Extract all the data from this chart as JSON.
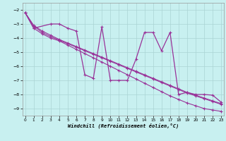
{
  "xlabel": "Windchill (Refroidissement éolien,°C)",
  "background_color": "#c8f0f0",
  "line_color": "#993399",
  "grid_color": "#aad4d4",
  "xlim": [
    -0.5,
    23.5
  ],
  "ylim": [
    -9.5,
    -1.5
  ],
  "yticks": [
    -9,
    -8,
    -7,
    -6,
    -5,
    -4,
    -3,
    -2
  ],
  "xticks": [
    0,
    1,
    2,
    3,
    4,
    5,
    6,
    7,
    8,
    9,
    10,
    11,
    12,
    13,
    14,
    15,
    16,
    17,
    18,
    19,
    20,
    21,
    22,
    23
  ],
  "straight1": {
    "x": [
      0,
      1,
      2,
      3,
      4,
      5,
      6,
      7,
      8,
      9,
      10,
      11,
      12,
      13,
      14,
      15,
      16,
      17,
      18,
      19,
      20,
      21,
      22,
      23
    ],
    "y": [
      -2.2,
      -3.3,
      -3.7,
      -4.0,
      -4.2,
      -4.5,
      -4.8,
      -5.1,
      -5.4,
      -5.7,
      -6.0,
      -6.3,
      -6.6,
      -6.9,
      -7.2,
      -7.5,
      -7.8,
      -8.1,
      -8.35,
      -8.6,
      -8.8,
      -9.0,
      -9.1,
      -9.2
    ]
  },
  "straight2": {
    "x": [
      0,
      1,
      2,
      3,
      4,
      5,
      6,
      7,
      8,
      9,
      10,
      11,
      12,
      13,
      14,
      15,
      16,
      17,
      18,
      19,
      20,
      21,
      22,
      23
    ],
    "y": [
      -2.2,
      -3.1,
      -3.5,
      -3.8,
      -4.1,
      -4.35,
      -4.6,
      -4.85,
      -5.1,
      -5.35,
      -5.6,
      -5.85,
      -6.1,
      -6.35,
      -6.6,
      -6.85,
      -7.1,
      -7.35,
      -7.6,
      -7.85,
      -8.05,
      -8.25,
      -8.45,
      -8.65
    ]
  },
  "straight3": {
    "x": [
      0,
      1,
      2,
      3,
      4,
      5,
      6,
      7,
      8,
      9,
      10,
      11,
      12,
      13,
      14,
      15,
      16,
      17,
      18,
      19,
      20,
      21,
      22,
      23
    ],
    "y": [
      -2.2,
      -3.15,
      -3.6,
      -3.9,
      -4.15,
      -4.4,
      -4.65,
      -4.9,
      -5.15,
      -5.4,
      -5.65,
      -5.9,
      -6.15,
      -6.4,
      -6.65,
      -6.9,
      -7.15,
      -7.4,
      -7.65,
      -7.9,
      -8.1,
      -8.3,
      -8.5,
      -8.7
    ]
  },
  "jagged": {
    "x": [
      0,
      1,
      3,
      4,
      5,
      6,
      7,
      8,
      9,
      10,
      11,
      12,
      13,
      14,
      15,
      16,
      17,
      18,
      19,
      20,
      21,
      22,
      23
    ],
    "y": [
      -2.2,
      -3.3,
      -3.0,
      -3.0,
      -3.3,
      -3.5,
      -6.6,
      -6.85,
      -3.2,
      -7.0,
      -7.0,
      -7.0,
      -5.5,
      -3.6,
      -3.6,
      -4.9,
      -3.6,
      -8.0,
      -7.85,
      -8.0,
      -8.0,
      -8.05,
      -8.55
    ]
  }
}
